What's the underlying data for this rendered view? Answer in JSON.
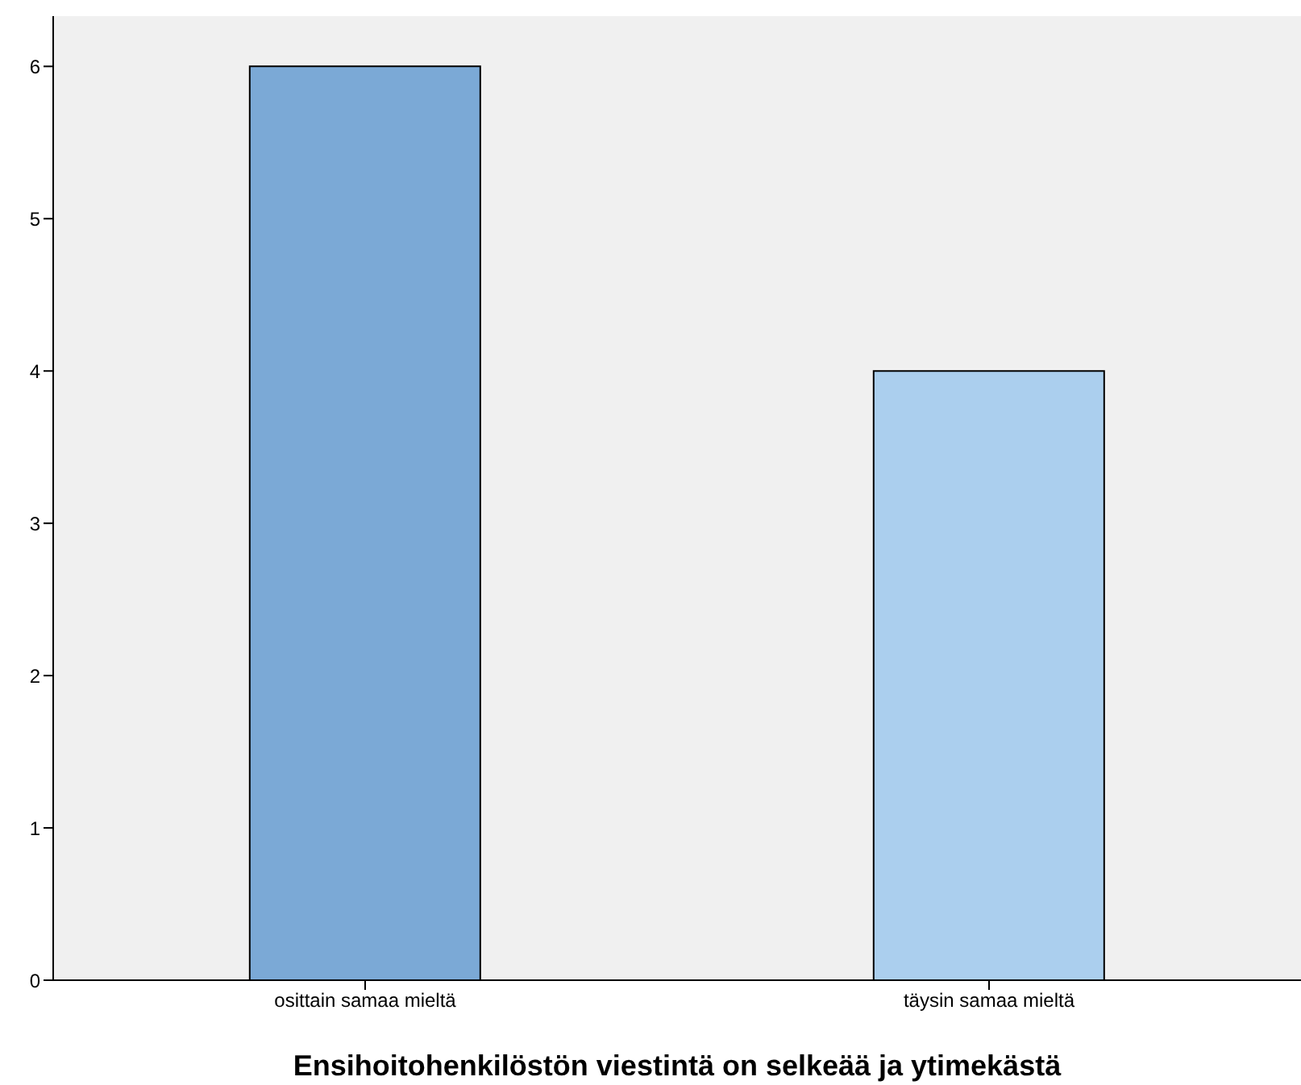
{
  "chart_data": {
    "type": "bar",
    "xlabel": "Ensihoitohenkilöstön viestintä on selkeää ja ytimekästä",
    "categories": [
      "osittain samaa mieltä",
      "täysin samaa mieltä"
    ],
    "values": [
      6,
      4
    ],
    "colors": [
      "#7ba9d6",
      "#abcfee"
    ],
    "ylim": [
      0,
      6.33
    ],
    "yticks": [
      0,
      1,
      2,
      3,
      4,
      5,
      6
    ],
    "grid": false
  }
}
